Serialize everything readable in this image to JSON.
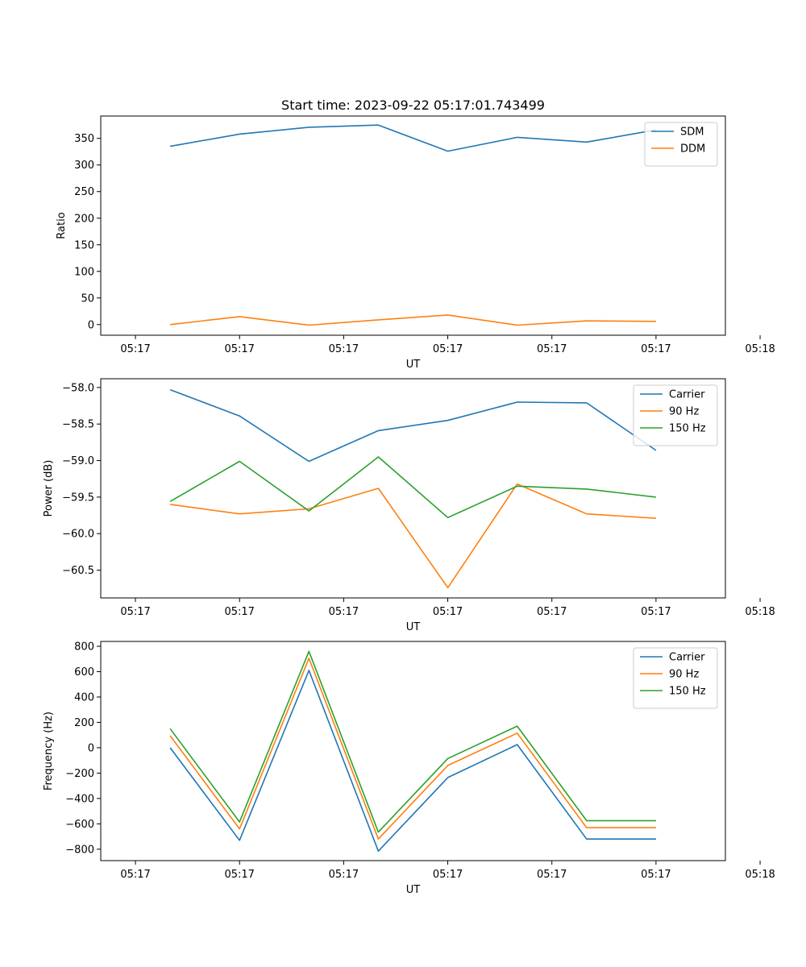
{
  "chart_data": [
    {
      "type": "line",
      "title": "Start time: 2023-09-22 05:17:01.743499",
      "xlabel": "UT",
      "ylabel": "Ratio",
      "xlim": [
        -0.5,
        8.5
      ],
      "ylim": [
        -20,
        392
      ],
      "x": [
        0.5,
        1.5,
        2.5,
        3.5,
        4.5,
        5.5,
        6.5,
        7.5
      ],
      "x_ticks": [
        0,
        1.5,
        3,
        4.5,
        6,
        7.5,
        9
      ],
      "x_tick_labels": [
        "05:17",
        "05:17",
        "05:17",
        "05:17",
        "05:17",
        "05:17",
        "05:18"
      ],
      "y_ticks": [
        0,
        50,
        100,
        150,
        200,
        250,
        300,
        350
      ],
      "y_tick_labels": [
        "0",
        "50",
        "100",
        "150",
        "200",
        "250",
        "300",
        "350"
      ],
      "legend_position": "top-right",
      "series": [
        {
          "name": "SDM",
          "color": "#1f77b4",
          "values": [
            335,
            358,
            371,
            375,
            326,
            352,
            343,
            366
          ]
        },
        {
          "name": "DDM",
          "color": "#ff7f0e",
          "values": [
            0,
            15,
            -1,
            9,
            18,
            -1,
            7,
            6
          ]
        }
      ]
    },
    {
      "type": "line",
      "title": "",
      "xlabel": "UT",
      "ylabel": "Power (dB)",
      "xlim": [
        -0.5,
        8.5
      ],
      "ylim": [
        -60.88,
        -57.88
      ],
      "x": [
        0.5,
        1.5,
        2.5,
        3.5,
        4.5,
        5.5,
        6.5,
        7.5
      ],
      "x_ticks": [
        0,
        1.5,
        3,
        4.5,
        6,
        7.5,
        9
      ],
      "x_tick_labels": [
        "05:17",
        "05:17",
        "05:17",
        "05:17",
        "05:17",
        "05:17",
        "05:18"
      ],
      "y_ticks": [
        -58.0,
        -58.5,
        -59.0,
        -59.5,
        -60.0,
        -60.5
      ],
      "y_tick_labels": [
        "−58.0",
        "−58.5",
        "−59.0",
        "−59.5",
        "−60.0",
        "−60.5"
      ],
      "legend_position": "top-right",
      "series": [
        {
          "name": "Carrier",
          "color": "#1f77b4",
          "values": [
            -58.03,
            -58.39,
            -59.01,
            -58.59,
            -58.45,
            -58.2,
            -58.21,
            -58.86
          ]
        },
        {
          "name": "90 Hz",
          "color": "#ff7f0e",
          "values": [
            -59.6,
            -59.73,
            -59.66,
            -59.38,
            -60.74,
            -59.32,
            -59.73,
            -59.79
          ]
        },
        {
          "name": "150 Hz",
          "color": "#2ca02c",
          "values": [
            -59.56,
            -59.01,
            -59.69,
            -58.95,
            -59.78,
            -59.35,
            -59.39,
            -59.5
          ]
        }
      ]
    },
    {
      "type": "line",
      "title": "",
      "xlabel": "UT",
      "ylabel": "Frequency (Hz)",
      "xlim": [
        -0.5,
        8.5
      ],
      "ylim": [
        -890,
        838
      ],
      "x": [
        0.5,
        1.5,
        2.5,
        3.5,
        4.5,
        5.5,
        6.5,
        7.5
      ],
      "x_ticks": [
        0,
        1.5,
        3,
        4.5,
        6,
        7.5,
        9
      ],
      "x_tick_labels": [
        "05:17",
        "05:17",
        "05:17",
        "05:17",
        "05:17",
        "05:17",
        "05:18"
      ],
      "y_ticks": [
        -800,
        -600,
        -400,
        -200,
        0,
        200,
        400,
        600,
        800
      ],
      "y_tick_labels": [
        "−800",
        "−600",
        "−400",
        "−200",
        "0",
        "200",
        "400",
        "600",
        "800"
      ],
      "legend_position": "top-right",
      "series": [
        {
          "name": "Carrier",
          "color": "#1f77b4",
          "values": [
            0,
            -730,
            610,
            -815,
            -235,
            25,
            -720,
            -720
          ]
        },
        {
          "name": "90 Hz",
          "color": "#ff7f0e",
          "values": [
            95,
            -640,
            705,
            -720,
            -140,
            115,
            -630,
            -630
          ]
        },
        {
          "name": "150 Hz",
          "color": "#2ca02c",
          "values": [
            150,
            -585,
            760,
            -665,
            -85,
            170,
            -575,
            -575
          ]
        }
      ]
    }
  ]
}
